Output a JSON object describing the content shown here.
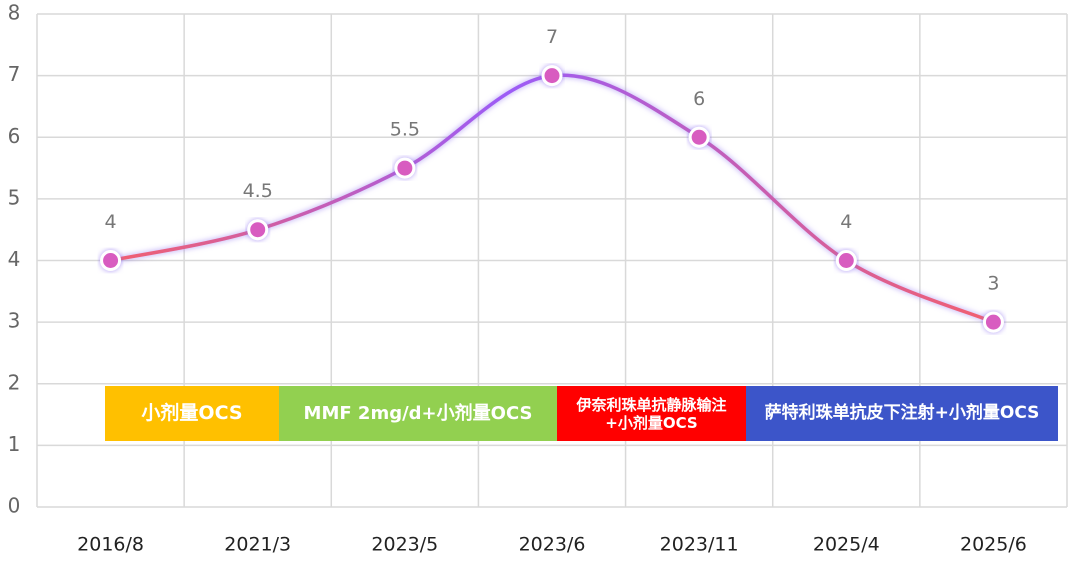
{
  "chart_data": {
    "type": "line",
    "categories": [
      "2016/8",
      "2021/3",
      "2023/5",
      "2023/6",
      "2023/11",
      "2025/4",
      "2025/6"
    ],
    "values": [
      4,
      4.5,
      5.5,
      7,
      6,
      4,
      3
    ],
    "ylim": [
      0,
      8
    ],
    "yticks": [
      0,
      1,
      2,
      3,
      4,
      5,
      6,
      7,
      8
    ],
    "grid": true,
    "line_colors": [
      "#f25f6e",
      "#9c5cf7"
    ],
    "marker_color": "#d85cc0",
    "annotations": [
      {
        "text": "小剂量OCS",
        "color": "#ffc000"
      },
      {
        "text": "MMF 2mg/d+小剂量OCS",
        "color": "#92d050"
      },
      {
        "text": "伊奈利珠单抗静脉输注+小剂量OCS",
        "color": "#ff0000"
      },
      {
        "text": "萨特利珠单抗皮下注射+小剂量OCS",
        "color": "#3c55c9"
      }
    ]
  }
}
